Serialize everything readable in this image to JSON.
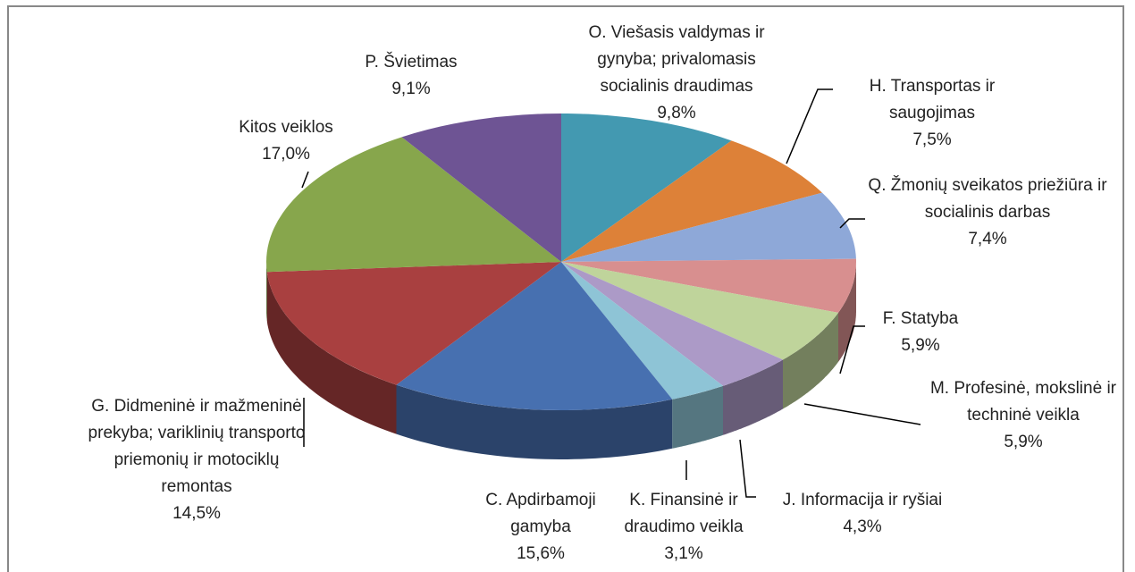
{
  "chart_data": {
    "type": "pie",
    "categories": [
      "O. Viešasis valdymas ir gynyba; privalomasis socialinis draudimas",
      "H. Transportas ir saugojimas",
      "Q. Žmonių sveikatos priežiūra ir socialinis darbas",
      "F. Statyba",
      "M. Profesinė, mokslinė ir techninė veikla",
      "J. Informacija ir ryšiai",
      "K. Finansinė ir draudimo veikla",
      "C. Apdirbamoji gamyba",
      "G. Didmeninė ir mažmeninė prekyba; variklinių transporto priemonių ir motociklų remontas",
      "Kitos veiklos",
      "P. Švietimas"
    ],
    "values": [
      9.8,
      7.5,
      7.4,
      5.9,
      5.9,
      4.3,
      3.1,
      15.6,
      14.5,
      17.0,
      9.1
    ],
    "value_labels": [
      "9,8%",
      "7,5%",
      "7,4%",
      "5,9%",
      "5,9%",
      "4,3%",
      "3,1%",
      "15,6%",
      "14,5%",
      "17,0%",
      "9,1%"
    ],
    "colors": [
      "#4399b1",
      "#dd8138",
      "#8ea8d8",
      "#d88f8f",
      "#bfd49b",
      "#ac9ac7",
      "#8ec4d6",
      "#4770b0",
      "#a94040",
      "#87a64c",
      "#6e5494"
    ]
  }
}
